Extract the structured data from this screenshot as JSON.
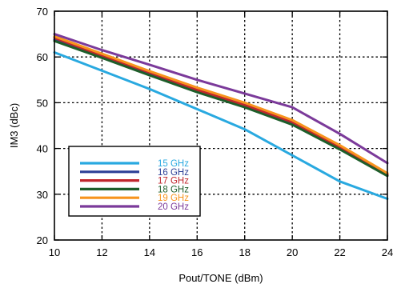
{
  "chart_data": {
    "type": "line",
    "title": "",
    "xlabel": "Pout/TONE (dBm)",
    "ylabel": "IM3 (dBc)",
    "xlim": [
      10,
      24
    ],
    "ylim": [
      20,
      70
    ],
    "x_ticks": [
      10,
      12,
      14,
      16,
      18,
      20,
      22,
      24
    ],
    "y_ticks": [
      20,
      30,
      40,
      50,
      60,
      70
    ],
    "grid": true,
    "grid_style": "dotted",
    "legend_position": "bottom-left",
    "x": [
      10,
      12,
      14,
      16,
      18,
      20,
      22,
      24
    ],
    "series": [
      {
        "name": "15 GHz",
        "color": "#29a9e0",
        "values": [
          61.0,
          57.0,
          53.0,
          48.6,
          44.2,
          38.5,
          32.8,
          29.0
        ]
      },
      {
        "name": "16 GHz",
        "color": "#2b3f96",
        "values": [
          63.8,
          60.0,
          56.3,
          52.5,
          49.2,
          45.5,
          40.0,
          34.2
        ]
      },
      {
        "name": "17 GHz",
        "color": "#c0272d",
        "values": [
          64.2,
          60.3,
          56.6,
          52.8,
          49.5,
          45.8,
          40.3,
          34.3
        ]
      },
      {
        "name": "18 GHz",
        "color": "#1e5e2a",
        "values": [
          63.5,
          59.8,
          56.0,
          52.3,
          49.0,
          45.2,
          39.8,
          34.0
        ]
      },
      {
        "name": "19 GHz",
        "color": "#f7941d",
        "values": [
          64.5,
          60.7,
          56.9,
          53.3,
          50.0,
          46.2,
          40.7,
          34.6
        ]
      },
      {
        "name": "20 GHz",
        "color": "#7b3a9a",
        "values": [
          65.0,
          61.5,
          58.3,
          55.0,
          52.0,
          49.0,
          43.2,
          36.8
        ]
      }
    ]
  }
}
